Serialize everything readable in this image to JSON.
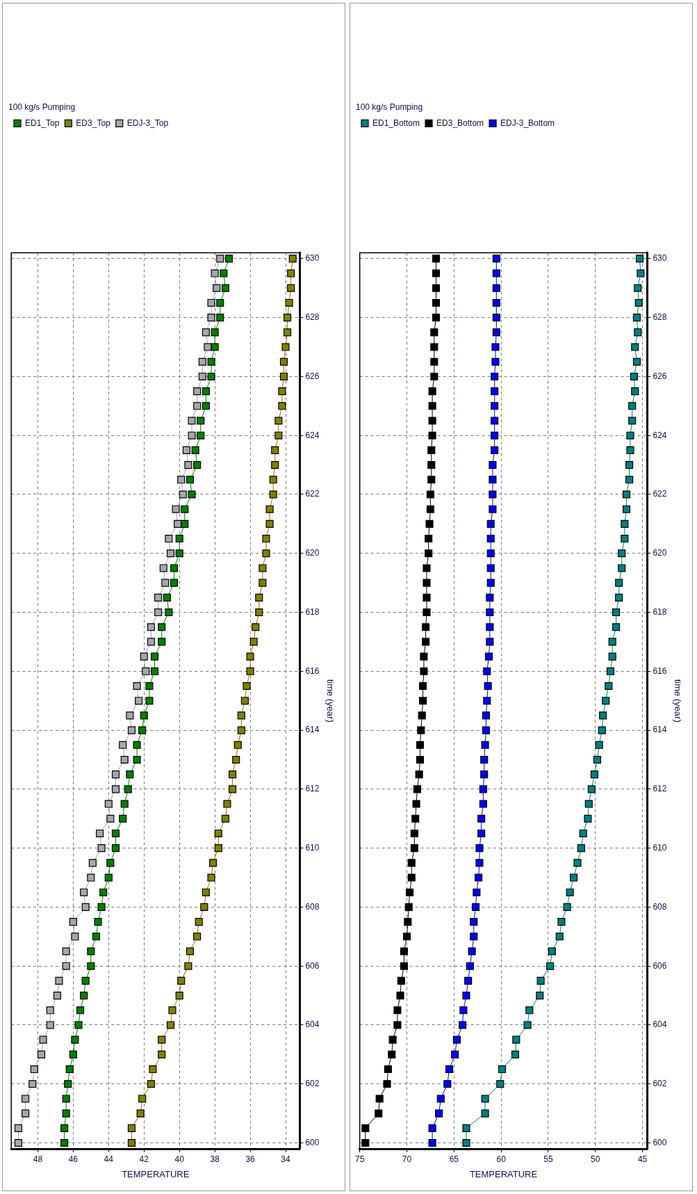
{
  "chart_data": [
    {
      "type": "line",
      "xlabel": "TEMPERATURE",
      "ylabel": "time (year)",
      "legend_title": "100 kg/s Pumping",
      "legend": "top left",
      "grid": true,
      "marker": "square",
      "line_style": "solid",
      "xlim": [
        49.5,
        33.2
      ],
      "xticks": [
        48,
        46,
        44,
        42,
        40,
        38,
        36,
        34
      ],
      "ylim": [
        599.8,
        630.2
      ],
      "yticks": [
        600,
        602,
        604,
        606,
        608,
        610,
        612,
        614,
        616,
        618,
        620,
        622,
        624,
        626,
        628,
        630
      ],
      "series": [
        {
          "name": "ED1_Top",
          "color": "#008000",
          "x": [
            46.5,
            46.5,
            46.4,
            46.4,
            46.3,
            46.2,
            46.0,
            45.9,
            45.7,
            45.6,
            45.4,
            45.3,
            45.0,
            45.0,
            44.7,
            44.6,
            44.4,
            44.3,
            44.0,
            43.9,
            43.6,
            43.6,
            43.2,
            43.1,
            42.9,
            42.8,
            42.4,
            42.4,
            42.1,
            42.0,
            41.7,
            41.7,
            41.4,
            41.4,
            41.0,
            41.0,
            40.6,
            40.7,
            40.3,
            40.3,
            40.0,
            40.0,
            39.7,
            39.7,
            39.3,
            39.4,
            39.0,
            39.1,
            38.8,
            38.8,
            38.5,
            38.5,
            38.2,
            38.2,
            38.0,
            38.0,
            37.7,
            37.7,
            37.4,
            37.5,
            37.2
          ],
          "values": [
            600,
            600.5,
            601,
            601.5,
            602,
            602.5,
            603,
            603.5,
            604,
            604.5,
            605,
            605.5,
            606,
            606.5,
            607,
            607.5,
            608,
            608.5,
            609,
            609.5,
            610,
            610.5,
            611,
            611.5,
            612,
            612.5,
            613,
            613.5,
            614,
            614.5,
            615,
            615.5,
            616,
            616.5,
            617,
            617.5,
            618,
            618.5,
            619,
            619.5,
            620,
            620.5,
            621,
            621.5,
            622,
            622.5,
            623,
            623.5,
            624,
            624.5,
            625,
            625.5,
            626,
            626.5,
            627,
            627.5,
            628,
            628.5,
            629,
            629.5,
            630
          ]
        },
        {
          "name": "ED3_Top",
          "color": "#808000",
          "x": [
            42.7,
            42.7,
            42.2,
            42.1,
            41.6,
            41.5,
            41.0,
            41.0,
            40.5,
            40.4,
            40.0,
            39.9,
            39.5,
            39.4,
            39.0,
            38.9,
            38.6,
            38.5,
            38.2,
            38.1,
            37.8,
            37.8,
            37.4,
            37.3,
            37.0,
            37.0,
            36.8,
            36.7,
            36.5,
            36.5,
            36.3,
            36.2,
            36.0,
            36.0,
            35.8,
            35.7,
            35.5,
            35.5,
            35.3,
            35.3,
            35.1,
            35.1,
            34.9,
            34.9,
            34.7,
            34.7,
            34.6,
            34.6,
            34.4,
            34.4,
            34.2,
            34.2,
            34.1,
            34.1,
            34.0,
            33.9,
            33.9,
            33.8,
            33.7,
            33.7,
            33.6
          ],
          "values": [
            600,
            600.5,
            601,
            601.5,
            602,
            602.5,
            603,
            603.5,
            604,
            604.5,
            605,
            605.5,
            606,
            606.5,
            607,
            607.5,
            608,
            608.5,
            609,
            609.5,
            610,
            610.5,
            611,
            611.5,
            612,
            612.5,
            613,
            613.5,
            614,
            614.5,
            615,
            615.5,
            616,
            616.5,
            617,
            617.5,
            618,
            618.5,
            619,
            619.5,
            620,
            620.5,
            621,
            621.5,
            622,
            622.5,
            623,
            623.5,
            624,
            624.5,
            625,
            625.5,
            626,
            626.5,
            627,
            627.5,
            628,
            628.5,
            629,
            629.5,
            630
          ]
        },
        {
          "name": "EDJ-3_Top",
          "color": "#a6a6ae",
          "x": [
            49.1,
            49.1,
            48.7,
            48.7,
            48.3,
            48.2,
            47.8,
            47.7,
            47.3,
            47.3,
            46.9,
            46.8,
            46.4,
            46.4,
            45.9,
            46.0,
            45.3,
            45.4,
            45.0,
            44.9,
            44.4,
            44.5,
            43.9,
            44.0,
            43.6,
            43.6,
            43.1,
            43.2,
            42.7,
            42.8,
            42.3,
            42.4,
            41.9,
            42.0,
            41.6,
            41.6,
            41.2,
            41.2,
            40.8,
            40.9,
            40.5,
            40.6,
            40.1,
            40.2,
            39.8,
            39.9,
            39.5,
            39.6,
            39.3,
            39.3,
            39.0,
            39.0,
            38.7,
            38.7,
            38.4,
            38.5,
            38.2,
            38.2,
            37.9,
            38.0,
            37.7
          ],
          "values": [
            600,
            600.5,
            601,
            601.5,
            602,
            602.5,
            603,
            603.5,
            604,
            604.5,
            605,
            605.5,
            606,
            606.5,
            607,
            607.5,
            608,
            608.5,
            609,
            609.5,
            610,
            610.5,
            611,
            611.5,
            612,
            612.5,
            613,
            613.5,
            614,
            614.5,
            615,
            615.5,
            616,
            616.5,
            617,
            617.5,
            618,
            618.5,
            619,
            619.5,
            620,
            620.5,
            621,
            621.5,
            622,
            622.5,
            623,
            623.5,
            624,
            624.5,
            625,
            625.5,
            626,
            626.5,
            627,
            627.5,
            628,
            628.5,
            629,
            629.5,
            630
          ]
        }
      ]
    },
    {
      "type": "line",
      "xlabel": "TEMPERATURE",
      "ylabel": "time (year)",
      "legend_title": "100 kg/s Pumping",
      "legend": "top left",
      "grid": true,
      "marker": "square",
      "line_style": "solid",
      "xlim": [
        75,
        44.5
      ],
      "xticks": [
        75,
        70,
        65,
        60,
        55,
        50,
        45
      ],
      "ylim": [
        599.8,
        630.2
      ],
      "yticks": [
        600,
        602,
        604,
        606,
        608,
        610,
        612,
        614,
        616,
        618,
        620,
        622,
        624,
        626,
        628,
        630
      ],
      "series": [
        {
          "name": "ED1_Bottom",
          "color": "#008080",
          "x": [
            63.7,
            63.7,
            61.7,
            61.7,
            60.1,
            59.9,
            58.5,
            58.4,
            57.2,
            57.0,
            55.9,
            55.8,
            54.8,
            54.6,
            53.8,
            53.6,
            53.0,
            52.7,
            52.3,
            51.9,
            51.5,
            51.3,
            50.8,
            50.7,
            50.4,
            50.1,
            49.8,
            49.6,
            49.3,
            49.2,
            48.9,
            48.6,
            48.4,
            48.2,
            48.2,
            47.8,
            47.8,
            47.5,
            47.5,
            47.2,
            47.2,
            46.9,
            46.9,
            46.7,
            46.7,
            46.4,
            46.4,
            46.3,
            46.3,
            46.1,
            46.1,
            45.8,
            45.9,
            45.6,
            45.8,
            45.5,
            45.6,
            45.4,
            45.5,
            45.2,
            45.3
          ],
          "values": [
            600,
            600.5,
            601,
            601.5,
            602,
            602.5,
            603,
            603.5,
            604,
            604.5,
            605,
            605.5,
            606,
            606.5,
            607,
            607.5,
            608,
            608.5,
            609,
            609.5,
            610,
            610.5,
            611,
            611.5,
            612,
            612.5,
            613,
            613.5,
            614,
            614.5,
            615,
            615.5,
            616,
            616.5,
            617,
            617.5,
            618,
            618.5,
            619,
            619.5,
            620,
            620.5,
            621,
            621.5,
            622,
            622.5,
            623,
            623.5,
            624,
            624.5,
            625,
            625.5,
            626,
            626.5,
            627,
            627.5,
            628,
            628.5,
            629,
            629.5,
            630
          ]
        },
        {
          "name": "ED3_Bottom",
          "color": "#000000",
          "x": [
            74.4,
            74.4,
            73.0,
            72.9,
            72.1,
            72.0,
            71.6,
            71.5,
            71.0,
            71.0,
            70.7,
            70.6,
            70.3,
            70.3,
            70.0,
            69.9,
            69.8,
            69.7,
            69.5,
            69.5,
            69.2,
            69.2,
            69.1,
            69.0,
            68.9,
            68.7,
            68.6,
            68.6,
            68.5,
            68.4,
            68.3,
            68.3,
            68.2,
            68.2,
            68.0,
            68.0,
            67.9,
            67.9,
            67.9,
            67.9,
            67.7,
            67.7,
            67.6,
            67.5,
            67.5,
            67.4,
            67.4,
            67.4,
            67.3,
            67.3,
            67.3,
            67.3,
            67.1,
            67.1,
            67.1,
            67.1,
            66.9,
            66.9,
            66.9,
            66.9,
            66.9
          ],
          "values": [
            600,
            600.5,
            601,
            601.5,
            602,
            602.5,
            603,
            603.5,
            604,
            604.5,
            605,
            605.5,
            606,
            606.5,
            607,
            607.5,
            608,
            608.5,
            609,
            609.5,
            610,
            610.5,
            611,
            611.5,
            612,
            612.5,
            613,
            613.5,
            614,
            614.5,
            615,
            615.5,
            616,
            616.5,
            617,
            617.5,
            618,
            618.5,
            619,
            619.5,
            620,
            620.5,
            621,
            621.5,
            622,
            622.5,
            623,
            623.5,
            624,
            624.5,
            625,
            625.5,
            626,
            626.5,
            627,
            627.5,
            628,
            628.5,
            629,
            629.5,
            630
          ]
        },
        {
          "name": "EDJ-3_Bottom",
          "color": "#0000ff",
          "x": [
            67.3,
            67.3,
            66.6,
            66.4,
            65.7,
            65.5,
            64.9,
            64.7,
            64.1,
            64.0,
            63.7,
            63.5,
            63.3,
            63.1,
            62.9,
            62.9,
            62.7,
            62.6,
            62.4,
            62.3,
            62.3,
            62.1,
            62.1,
            61.9,
            61.9,
            61.8,
            61.8,
            61.7,
            61.6,
            61.6,
            61.5,
            61.4,
            61.5,
            61.3,
            61.2,
            61.2,
            61.2,
            61.2,
            61.1,
            61.1,
            61.1,
            61.1,
            61.1,
            60.9,
            60.9,
            60.9,
            60.9,
            60.7,
            60.7,
            60.7,
            60.7,
            60.7,
            60.7,
            60.6,
            60.6,
            60.5,
            60.5,
            60.5,
            60.5,
            60.5,
            60.5
          ],
          "values": [
            600,
            600.5,
            601,
            601.5,
            602,
            602.5,
            603,
            603.5,
            604,
            604.5,
            605,
            605.5,
            606,
            606.5,
            607,
            607.5,
            608,
            608.5,
            609,
            609.5,
            610,
            610.5,
            611,
            611.5,
            612,
            612.5,
            613,
            613.5,
            614,
            614.5,
            615,
            615.5,
            616,
            616.5,
            617,
            617.5,
            618,
            618.5,
            619,
            619.5,
            620,
            620.5,
            621,
            621.5,
            622,
            622.5,
            623,
            623.5,
            624,
            624.5,
            625,
            625.5,
            626,
            626.5,
            627,
            627.5,
            628,
            628.5,
            629,
            629.5,
            630
          ]
        }
      ]
    }
  ]
}
